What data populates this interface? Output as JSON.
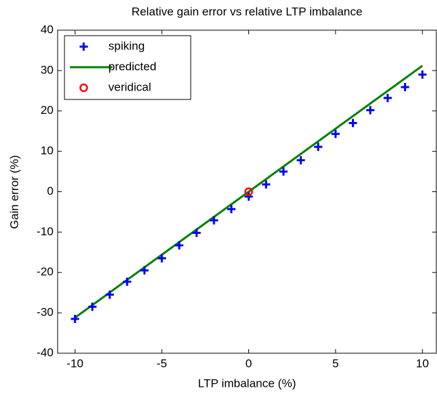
{
  "chart_data": {
    "type": "line",
    "title": "Relative gain error vs relative LTP imbalance",
    "x_label": "LTP imbalance (%)",
    "y_label": "Gain error  (%)",
    "xlim": [
      -11,
      10.8
    ],
    "ylim": [
      -40,
      40
    ],
    "xticks": [
      -10,
      -5,
      0,
      5,
      10
    ],
    "yticks": [
      -40,
      -30,
      -20,
      -10,
      0,
      10,
      20,
      30,
      40
    ],
    "legend": "upper left",
    "series": [
      {
        "name": "spiking",
        "color": "#0000ff",
        "mode": "markers",
        "x": [
          -10,
          -9,
          -8,
          -7,
          -6,
          -5,
          -4,
          -3,
          -2,
          -1,
          0,
          1,
          2,
          3,
          4,
          5,
          6,
          7,
          8,
          9,
          10
        ],
        "values": [
          -31.5,
          -28.5,
          -25.5,
          -22.3,
          -19.5,
          -16.5,
          -13.3,
          -10.2,
          -7.1,
          -4.3,
          -1.2,
          1.8,
          5,
          7.8,
          11.1,
          14.3,
          17,
          20.2,
          23.2,
          25.9,
          29
        ]
      },
      {
        "name": "predicted",
        "color": "#008000",
        "mode": "line",
        "x": [
          -10,
          10
        ],
        "values": [
          -31.2,
          31.2
        ]
      },
      {
        "name": "veridical",
        "color": "#ff0000",
        "mode": "circle",
        "x": [
          0
        ],
        "values": [
          0
        ]
      }
    ]
  }
}
